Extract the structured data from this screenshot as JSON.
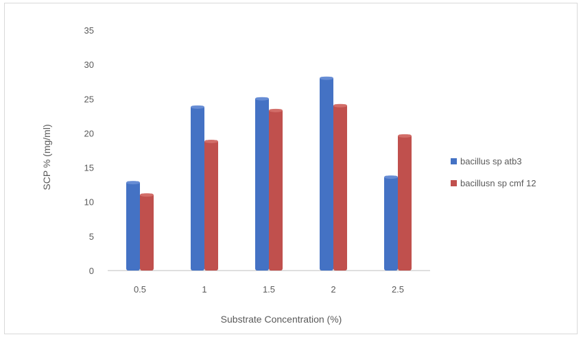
{
  "chart_data": {
    "type": "bar",
    "categories": [
      "0.5",
      "1",
      "1.5",
      "2",
      "2.5"
    ],
    "series": [
      {
        "name": "bacillus sp atb3",
        "values": [
          13,
          24,
          25.2,
          28.2,
          13.8
        ],
        "color": "#4472c4"
      },
      {
        "name": "bacillusn sp cmf 12",
        "values": [
          11.2,
          19,
          23.5,
          24.2,
          19.8
        ],
        "color": "#c0504d"
      }
    ],
    "y_ticks": [
      "0",
      "5",
      "10",
      "15",
      "20",
      "25",
      "30",
      "35"
    ],
    "ylim": [
      0,
      35
    ],
    "xlabel": "Substrate  Concentration (%)",
    "ylabel": "SCP % (mg/ml)",
    "legend": "right",
    "grid": false
  }
}
